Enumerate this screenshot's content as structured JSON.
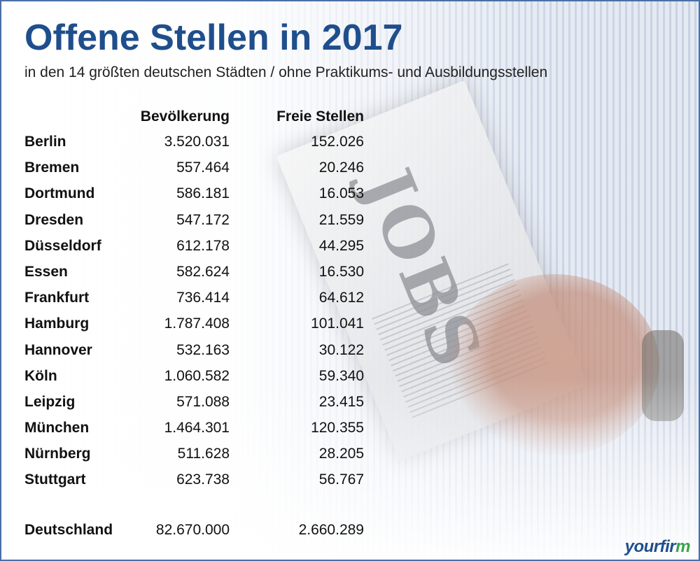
{
  "title": "Offene Stellen in 2017",
  "subtitle": "in den 14 größten deutschen Städten / ohne Praktikums- und Ausbildungsstellen",
  "table": {
    "headers": {
      "population": "Bevölkerung",
      "jobs": "Freie Stellen"
    },
    "rows": [
      {
        "city": "Berlin",
        "population": "3.520.031",
        "jobs": "152.026"
      },
      {
        "city": "Bremen",
        "population": "557.464",
        "jobs": "20.246"
      },
      {
        "city": "Dortmund",
        "population": "586.181",
        "jobs": "16.053"
      },
      {
        "city": "Dresden",
        "population": "547.172",
        "jobs": "21.559"
      },
      {
        "city": "Düsseldorf",
        "population": "612.178",
        "jobs": "44.295"
      },
      {
        "city": "Essen",
        "population": "582.624",
        "jobs": "16.530"
      },
      {
        "city": "Frankfurt",
        "population": "736.414",
        "jobs": "64.612"
      },
      {
        "city": "Hamburg",
        "population": "1.787.408",
        "jobs": "101.041"
      },
      {
        "city": "Hannover",
        "population": "532.163",
        "jobs": "30.122"
      },
      {
        "city": "Köln",
        "population": "1.060.582",
        "jobs": "59.340"
      },
      {
        "city": "Leipzig",
        "population": "571.088",
        "jobs": "23.415"
      },
      {
        "city": "München",
        "population": "1.464.301",
        "jobs": "120.355"
      },
      {
        "city": "Nürnberg",
        "population": "511.628",
        "jobs": "28.205"
      },
      {
        "city": "Stuttgart",
        "population": "623.738",
        "jobs": "56.767"
      }
    ],
    "total": {
      "city": "Deutschland",
      "population": "82.670.000",
      "jobs": "2.660.289"
    }
  },
  "background": {
    "newspaper_word": "JOBS"
  },
  "logo": {
    "main": "yourfir",
    "accent": "m"
  },
  "colors": {
    "title": "#1f4e8c",
    "border": "#4a6fa5",
    "logo_accent": "#3aa34a"
  }
}
